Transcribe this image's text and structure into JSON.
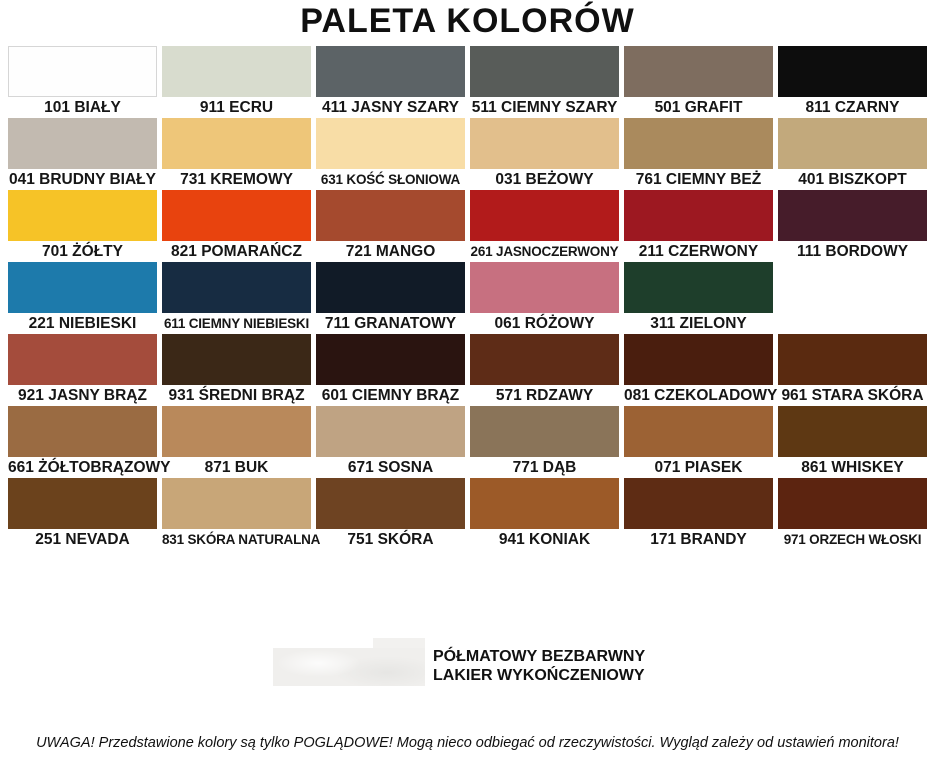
{
  "title": "PALETA KOLORÓW",
  "chart_data": {
    "type": "table",
    "title": "PALETA KOLORÓW",
    "columns": 6,
    "rows": [
      [
        {
          "label": "101 BIAŁY",
          "color": "#fefefe",
          "bordered": true
        },
        {
          "label": "911 ECRU",
          "color": "#d8dcce"
        },
        {
          "label": "411 JASNY SZARY",
          "color": "#5c6366"
        },
        {
          "label": "511 CIEMNY SZARY",
          "color": "#585c59"
        },
        {
          "label": "501 GRAFIT",
          "color": "#7e6d5f"
        },
        {
          "label": "811 CZARNY",
          "color": "#0d0d0d"
        }
      ],
      [
        {
          "label": "041 BRUDNY BIAŁY",
          "color": "#c2bab0"
        },
        {
          "label": "731 KREMOWY",
          "color": "#eec679"
        },
        {
          "label": "631 KOŚĆ SŁONIOWA",
          "color": "#f8dda6"
        },
        {
          "label": "031 BEŻOWY",
          "color": "#e2bf8c"
        },
        {
          "label": "761 CIEMNY BEŻ",
          "color": "#aa8a5d"
        },
        {
          "label": "401 BISZKOPT",
          "color": "#c2a97c"
        }
      ],
      [
        {
          "label": "701 ŻÓŁTY",
          "color": "#f6c327"
        },
        {
          "label": "821 POMARAŃCZ",
          "color": "#e8430e"
        },
        {
          "label": "721 MANGO",
          "color": "#a54a2e"
        },
        {
          "label": "261 JASNOCZERWONY",
          "color": "#b21b1b"
        },
        {
          "label": "211 CZERWONY",
          "color": "#9d1821"
        },
        {
          "label": "111 BORDOWY",
          "color": "#461c2a"
        }
      ],
      [
        {
          "label": "221 NIEBIESKI",
          "color": "#1d7aab"
        },
        {
          "label": "611 CIEMNY NIEBIESKI",
          "color": "#172c42"
        },
        {
          "label": "711 GRANATOWY",
          "color": "#111b27"
        },
        {
          "label": "061 RÓŻOWY",
          "color": "#c77080"
        },
        {
          "label": "311 ZIELONY",
          "color": "#1e3e2b"
        },
        null
      ],
      [
        {
          "label": "921 JASNY BRĄZ",
          "color": "#a44c3c"
        },
        {
          "label": "931 ŚREDNI BRĄZ",
          "color": "#3b2817"
        },
        {
          "label": "601 CIEMNY BRĄZ",
          "color": "#2a1410"
        },
        {
          "label": "571 RDZAWY",
          "color": "#5e2c17"
        },
        {
          "label": "081 CZEKOLADOWY",
          "color": "#4a1e0e"
        },
        {
          "label": "961 STARA SKÓRA",
          "color": "#5a2a10"
        }
      ],
      [
        {
          "label": "661 ŻÓŁTOBRĄZOWY",
          "color": "#9a6b42"
        },
        {
          "label": "871 BUK",
          "color": "#b9895b"
        },
        {
          "label": "671 SOSNA",
          "color": "#bfa383"
        },
        {
          "label": "771 DĄB",
          "color": "#8a7459"
        },
        {
          "label": "071 PIASEK",
          "color": "#9c6234"
        },
        {
          "label": "861 WHISKEY",
          "color": "#5e3813"
        }
      ],
      [
        {
          "label": "251 NEVADA",
          "color": "#6b421c"
        },
        {
          "label": "831 SKÓRA NATURALNA",
          "color": "#c8a678"
        },
        {
          "label": "751 SKÓRA",
          "color": "#6e4322"
        },
        {
          "label": "941 KONIAK",
          "color": "#9c5a28"
        },
        {
          "label": "171 BRANDY",
          "color": "#5e2c14"
        },
        {
          "label": "971 ORZECH WŁOSKI",
          "color": "#5c2410"
        }
      ]
    ]
  },
  "finish": {
    "swatch_color": "#f0efed",
    "line1": "PÓŁMATOWY BEZBARWNY",
    "line2": "LAKIER WYKOŃCZENIOWY"
  },
  "footer": {
    "warning": "UWAGA! Przedstawione kolory są tylko POGLĄDOWE! Mogą nieco odbiegać od rzeczywistości. Wygląd zależy od ustawień monitora!"
  }
}
